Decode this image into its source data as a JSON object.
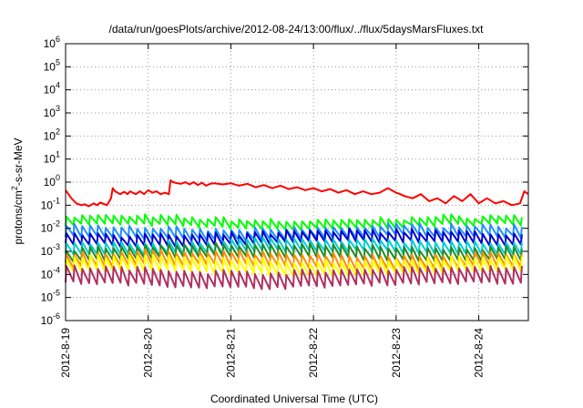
{
  "chart_data": {
    "type": "line",
    "title": "/data/run/goesPlots/archive/2012-08-24/13:00/flux/../flux/5daysMarsFluxes.txt",
    "xlabel": "Coordinated Universal Time (UTC)",
    "ylabel": "protons/cm2-s-sr-MeV",
    "ylabel_parts": {
      "pre": "protons/cm",
      "sup": "2",
      "post": "-s-sr-MeV"
    },
    "yscale": "log",
    "ylim_exp": [
      -6,
      6
    ],
    "ytick_base": "10",
    "ytick_exponents": [
      -6,
      -5,
      -4,
      -3,
      -2,
      -1,
      0,
      1,
      2,
      3,
      4,
      5,
      6
    ],
    "xlim": [
      0,
      5.6
    ],
    "xticks": [
      {
        "x": 0,
        "label": "2012-8-19"
      },
      {
        "x": 1,
        "label": "2012-8-20"
      },
      {
        "x": 2,
        "label": "2012-8-21"
      },
      {
        "x": 3,
        "label": "2012-8-22"
      },
      {
        "x": 4,
        "label": "2012-8-23"
      },
      {
        "x": 5,
        "label": "2012-8-24"
      }
    ],
    "grid": true,
    "series": [
      {
        "color": "#ff0000",
        "x": [
          0,
          0.07,
          0.13,
          0.19,
          0.23,
          0.28,
          0.34,
          0.38,
          0.42,
          0.5,
          0.55,
          0.57,
          0.6,
          0.63,
          0.66,
          0.71,
          0.75,
          0.78,
          0.85,
          0.9,
          0.95,
          1.0,
          1.05,
          1.1,
          1.15,
          1.2,
          1.25,
          1.27,
          1.3,
          1.35,
          1.4,
          1.45,
          1.5,
          1.55,
          1.6,
          1.65,
          1.7,
          1.75,
          1.8,
          1.9,
          2.0,
          2.1,
          2.2,
          2.3,
          2.4,
          2.5,
          2.6,
          2.7,
          2.8,
          2.9,
          3.0,
          3.1,
          3.2,
          3.3,
          3.4,
          3.5,
          3.6,
          3.7,
          3.8,
          3.9,
          4.0,
          4.05,
          4.1,
          4.2,
          4.3,
          4.4,
          4.5,
          4.6,
          4.7,
          4.8,
          4.9,
          5.0,
          5.1,
          5.2,
          5.3,
          5.4,
          5.5,
          5.55,
          5.6
        ],
        "y": [
          0.45,
          0.2,
          0.12,
          0.1,
          0.11,
          0.09,
          0.12,
          0.1,
          0.13,
          0.1,
          0.2,
          0.55,
          0.4,
          0.35,
          0.3,
          0.38,
          0.3,
          0.4,
          0.3,
          0.4,
          0.3,
          0.45,
          0.35,
          0.4,
          0.3,
          0.35,
          0.3,
          1.2,
          1.0,
          0.9,
          0.85,
          1.0,
          0.8,
          1.0,
          0.75,
          0.95,
          0.7,
          0.85,
          0.9,
          0.8,
          0.9,
          0.7,
          0.85,
          0.6,
          0.75,
          0.55,
          0.7,
          0.5,
          0.6,
          0.45,
          0.55,
          0.4,
          0.5,
          0.35,
          0.45,
          0.3,
          0.4,
          0.3,
          0.35,
          0.55,
          0.35,
          0.3,
          0.25,
          0.2,
          0.3,
          0.15,
          0.2,
          0.12,
          0.25,
          0.15,
          0.3,
          0.12,
          0.2,
          0.12,
          0.15,
          0.1,
          0.12,
          0.4,
          0.3
        ]
      },
      {
        "color": "#00ff00",
        "base": 0.012,
        "amp": 2.2
      },
      {
        "color": "#1e90ff",
        "base": 0.004,
        "amp": 2.6
      },
      {
        "color": "#0000cd",
        "base": 0.0022,
        "amp": 2.8
      },
      {
        "color": "#00ced1",
        "base": 0.0009,
        "amp": 3.0
      },
      {
        "color": "#228b22",
        "base": 0.0005,
        "amp": 3.2
      },
      {
        "color": "#ff8c00",
        "base": 0.00022,
        "amp": 3.5
      },
      {
        "color": "#ffff00",
        "base": 0.00012,
        "amp": 3.8
      },
      {
        "color": "#b03060",
        "base": 3.5e-05,
        "amp": 4.5
      }
    ]
  }
}
